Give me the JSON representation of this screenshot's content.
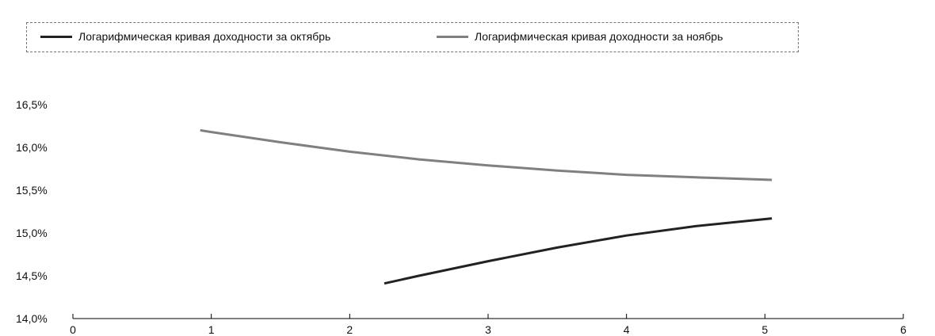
{
  "colors": {
    "series_october": "#222222",
    "series_november": "#808080",
    "axis": "#000000"
  },
  "chart_data": {
    "type": "line",
    "title": "",
    "xlabel": "",
    "ylabel": "",
    "xlim": [
      0,
      6
    ],
    "ylim": [
      14.0,
      16.5
    ],
    "grid": false,
    "legend_position": "top",
    "x_ticks": [
      "0",
      "1",
      "2",
      "3",
      "4",
      "5",
      "6"
    ],
    "y_ticks": [
      "14,0%",
      "14,5%",
      "15,0%",
      "15,5%",
      "16,0%",
      "16,5%"
    ],
    "series": [
      {
        "name": "Логарифмическая кривая доходности за октябрь",
        "color": "#222222",
        "x": [
          2.25,
          2.5,
          3.0,
          3.5,
          4.0,
          4.5,
          5.05
        ],
        "y": [
          14.41,
          14.5,
          14.67,
          14.83,
          14.97,
          15.08,
          15.17
        ]
      },
      {
        "name": "Логарифмическая кривая доходности за ноябрь",
        "color": "#808080",
        "x": [
          0.92,
          1.0,
          1.5,
          2.0,
          2.5,
          3.0,
          3.5,
          4.0,
          4.5,
          5.05
        ],
        "y": [
          16.2,
          16.18,
          16.06,
          15.95,
          15.86,
          15.79,
          15.73,
          15.68,
          15.65,
          15.62
        ]
      }
    ]
  }
}
